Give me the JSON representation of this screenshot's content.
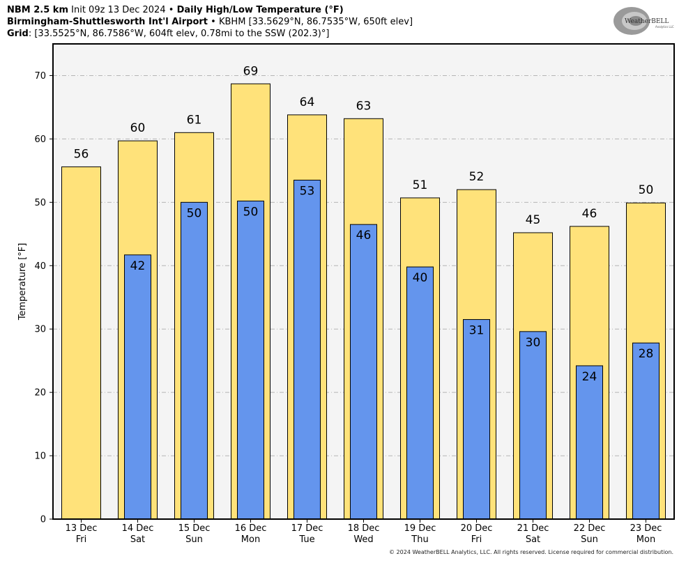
{
  "header": {
    "line1_bold_a": "NBM 2.5 km",
    "line1_init": "Init 09z 13 Dec 2024",
    "line1_sep": "•",
    "line1_bold_b": "Daily High/Low Temperature (°F)",
    "line2_bold": "Birmingham-Shuttlesworth Int'l Airport",
    "line2_sep": "•",
    "line2_rest": "KBHM [33.5629°N, 86.7535°W, 650ft elev]",
    "line3_bold": "Grid",
    "line3_rest": ": [33.5525°N, 86.7586°W, 604ft elev, 0.78mi to the SSW (202.3)°]"
  },
  "logo": {
    "text_main": "WeatherBELL",
    "text_sub": "Analytics LLC"
  },
  "copyright": "© 2024 WeatherBELL Analytics, LLC. All rights reserved. License required for commercial distribution.",
  "chart_data": {
    "type": "bar",
    "ylabel": "Temperature [°F]",
    "ylim": [
      0,
      75
    ],
    "yticks": [
      0,
      10,
      20,
      30,
      40,
      50,
      60,
      70
    ],
    "grid": true,
    "categories": [
      {
        "date": "13 Dec",
        "day": "Fri"
      },
      {
        "date": "14 Dec",
        "day": "Sat"
      },
      {
        "date": "15 Dec",
        "day": "Sun"
      },
      {
        "date": "16 Dec",
        "day": "Mon"
      },
      {
        "date": "17 Dec",
        "day": "Tue"
      },
      {
        "date": "18 Dec",
        "day": "Wed"
      },
      {
        "date": "19 Dec",
        "day": "Thu"
      },
      {
        "date": "20 Dec",
        "day": "Fri"
      },
      {
        "date": "21 Dec",
        "day": "Sat"
      },
      {
        "date": "22 Dec",
        "day": "Sun"
      },
      {
        "date": "23 Dec",
        "day": "Mon"
      }
    ],
    "series": [
      {
        "key": "high",
        "values": [
          55.6,
          59.7,
          61.0,
          68.7,
          63.8,
          63.2,
          50.7,
          52.0,
          45.2,
          46.2,
          49.9
        ],
        "labels": [
          "56",
          "60",
          "61",
          "69",
          "64",
          "63",
          "51",
          "52",
          "45",
          "46",
          "50"
        ],
        "color": "#ffe27a"
      },
      {
        "key": "low",
        "values": [
          null,
          41.7,
          50.0,
          50.2,
          53.5,
          46.5,
          39.8,
          31.5,
          29.6,
          24.2,
          27.8
        ],
        "labels": [
          null,
          "42",
          "50",
          "50",
          "53",
          "46",
          "40",
          "31",
          "30",
          "24",
          "28"
        ],
        "color": "#6495ed"
      }
    ],
    "colors": {
      "plot_bg": "#f4f4f4",
      "grid": "#b4b4b4"
    }
  }
}
